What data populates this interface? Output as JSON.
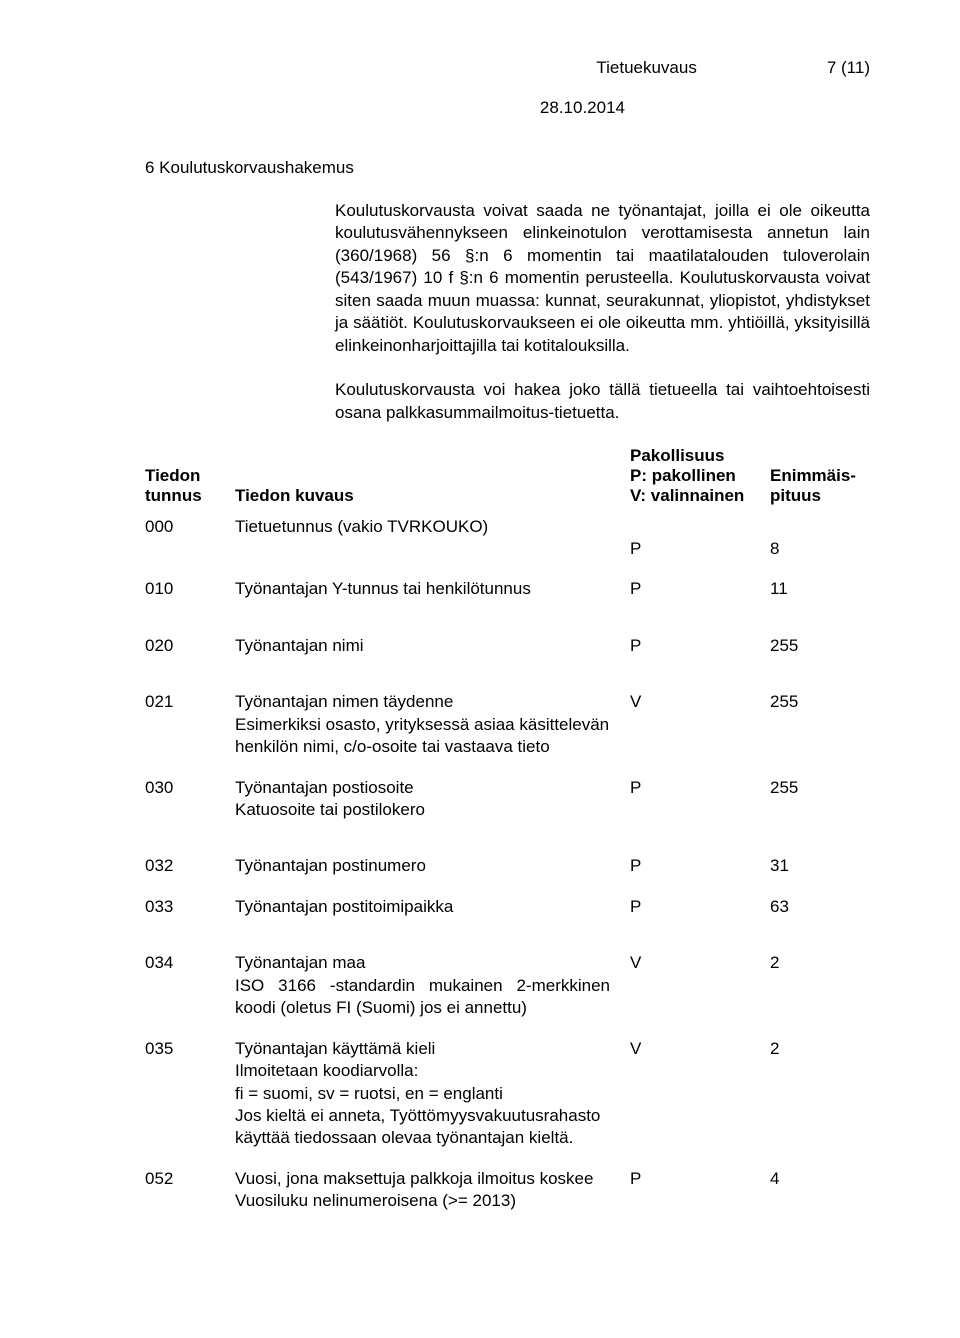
{
  "header": {
    "doc_type": "Tietuekuvaus",
    "page_info": "7 (11)",
    "date": "28.10.2014"
  },
  "section": {
    "number_title": "6 Koulutuskorvaushakemus",
    "intro_p1": "Koulutuskorvausta voivat saada ne työnantajat, joilla ei ole oikeutta koulutusvähennykseen elinkeinotulon verottamisesta annetun lain (360/1968) 56 §:n 6 momentin tai maatilatalouden tuloverolain (543/1967) 10 f §:n 6 momentin perusteella. Koulutuskorvausta voivat siten saada muun muassa: kunnat, seurakunnat, yliopistot, yhdistykset ja säätiöt. Koulutuskorvaukseen ei ole oikeutta mm. yhtiöillä, yksityisillä elinkeinonharjoittajilla tai kotitalouksilla.",
    "intro_p2": "Koulutuskorvausta voi hakea joko tällä tietueella tai vaihtoehtoisesti osana palkkasummailmoitus-tietuetta."
  },
  "columns": {
    "tunnus_l1": "Tiedon",
    "tunnus_l2": "tunnus",
    "kuvaus": "Tiedon kuvaus",
    "pak_l1": "Pakollisuus",
    "pak_l2": "P: pakollinen",
    "pak_l3": "V: valinnainen",
    "pit_l1": "Enimmäis-",
    "pit_l2": "pituus"
  },
  "rows": [
    {
      "id": "000",
      "label": "Tietuetunnus  (vakio TVRKOUKO)",
      "sub": "",
      "pv": "P",
      "len": "8"
    },
    {
      "id": "010",
      "label": "Työnantajan Y-tunnus tai henkilötunnus",
      "sub": "",
      "pv": "P",
      "len": "11"
    },
    {
      "id": "020",
      "label": "Työnantajan nimi",
      "sub": "",
      "pv": "P",
      "len": "255"
    },
    {
      "id": "021",
      "label": "Työnantajan nimen täydenne",
      "sub": "Esimerkiksi osasto, yrityksessä asiaa käsittelevän henkilön nimi, c/o-osoite tai vastaava tieto",
      "pv": "V",
      "len": "255"
    },
    {
      "id": "030",
      "label": "Työnantajan postiosoite",
      "sub": "Katuosoite tai postilokero",
      "pv": "P",
      "len": "255"
    },
    {
      "id": "032",
      "label": "Työnantajan postinumero",
      "sub": "",
      "pv": "P",
      "len": "31"
    },
    {
      "id": "033",
      "label": "Työnantajan postitoimipaikka",
      "sub": "",
      "pv": "P",
      "len": "63"
    },
    {
      "id": "034",
      "label": "Työnantajan maa",
      "sub": "ISO 3166 -standardin mukainen 2-merkkinen koodi (oletus FI (Suomi) jos ei annettu)",
      "pv": "V",
      "len": "2"
    },
    {
      "id": "035",
      "label": "Työnantajan käyttämä kieli",
      "sub": "Ilmoitetaan koodiarvolla:\nfi = suomi, sv = ruotsi, en = englanti\nJos kieltä ei anneta, Työttömyysvakuutusrahasto käyttää tiedossaan olevaa työnantajan kieltä.",
      "pv": "V",
      "len": "2"
    },
    {
      "id": "052",
      "label": "Vuosi, jona maksettuja palkkoja ilmoitus koskee",
      "sub": "Vuosiluku nelinumeroisena (>= 2013)",
      "pv": "P",
      "len": "4"
    }
  ]
}
